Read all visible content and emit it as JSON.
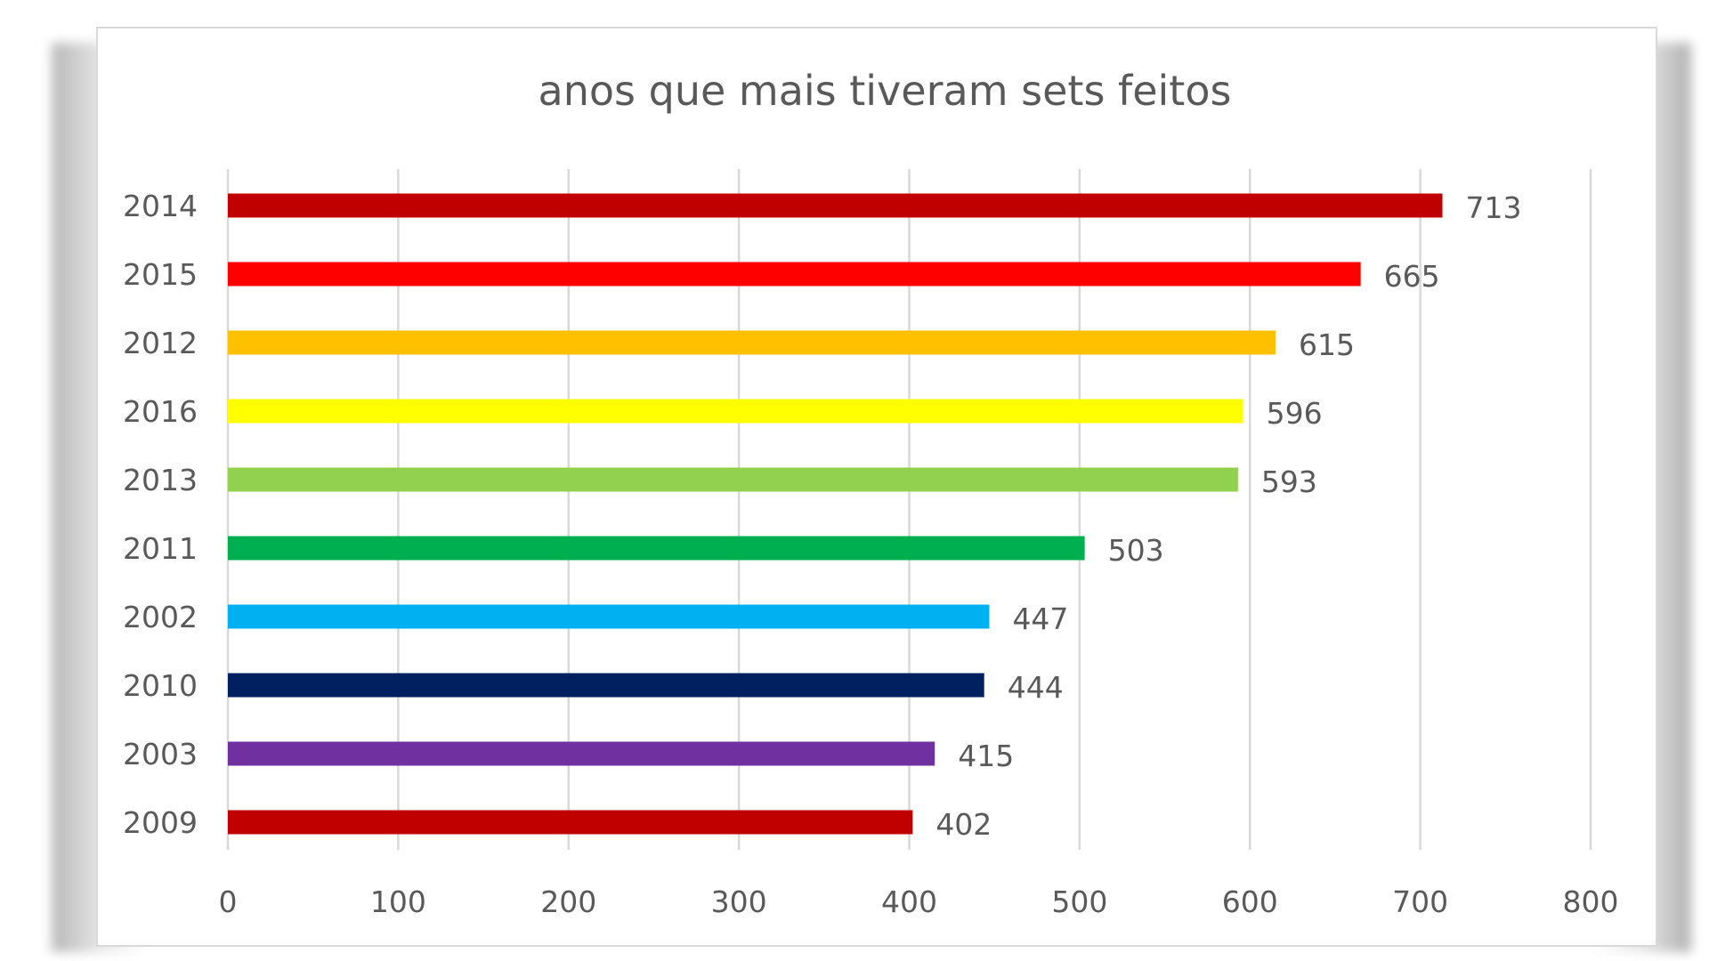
{
  "chart_data": {
    "type": "bar",
    "orientation": "horizontal",
    "title": "anos que mais tiveram sets feitos",
    "xlabel": "",
    "ylabel": "",
    "categories": [
      "2014",
      "2015",
      "2012",
      "2016",
      "2013",
      "2011",
      "2002",
      "2010",
      "2003",
      "2009"
    ],
    "values": [
      713,
      665,
      615,
      596,
      593,
      503,
      447,
      444,
      415,
      402
    ],
    "colors": [
      "#C00000",
      "#FF0000",
      "#FFC000",
      "#FFFF00",
      "#92D050",
      "#00B050",
      "#00B0F0",
      "#002060",
      "#7030A0",
      "#C00000"
    ],
    "xlim": [
      0,
      800
    ],
    "xticks": [
      0,
      100,
      200,
      300,
      400,
      500,
      600,
      700,
      800
    ],
    "grid": true,
    "data_labels": true,
    "legend": "none"
  }
}
